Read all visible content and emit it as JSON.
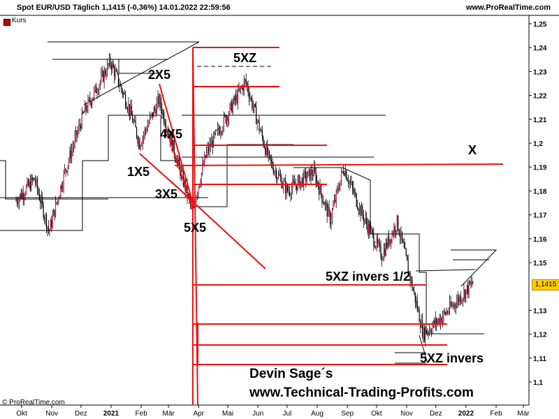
{
  "header": {
    "instrument": "Spot EUR/USD Täglich 1,1415 (-0,36%) 14.01.2022 22:59:56",
    "site": "www.ProRealTime.com"
  },
  "legend": {
    "label": "Kurs",
    "color": "#cc0000"
  },
  "price_tag": "1,1415",
  "credit": "© ProRealTime.com",
  "signature": {
    "line1": "Devin Sage´s",
    "line2": "www.Technical-Trading-Profits.com"
  },
  "chart_data": {
    "type": "candlestick-overlay",
    "title": "",
    "y_ticks": [
      "1,25",
      "1,24",
      "1,23",
      "1,22",
      "1,21",
      "1,2",
      "1,19",
      "1,18",
      "1,17",
      "1,16",
      "1,15",
      "1,13",
      "1,12",
      "1,11",
      "1,1"
    ],
    "y_tick_values": [
      1.25,
      1.24,
      1.23,
      1.22,
      1.21,
      1.2,
      1.19,
      1.18,
      1.17,
      1.16,
      1.15,
      1.13,
      1.12,
      1.11,
      1.1
    ],
    "x_ticks": [
      "Okt",
      "Nov",
      "Dez",
      "2021",
      "Feb",
      "Mär",
      "Apr",
      "Mai",
      "Jun",
      "Jul",
      "Aug",
      "Sep",
      "Okt",
      "Nov",
      "Dez",
      "2022",
      "Feb",
      "Mär"
    ],
    "ylim": [
      1.095,
      1.255
    ],
    "last_value": 1.1415,
    "price_path_approx": [
      [
        "2020-10-01",
        1.176
      ],
      [
        "2020-10-20",
        1.185
      ],
      [
        "2020-11-04",
        1.163
      ],
      [
        "2020-11-20",
        1.188
      ],
      [
        "2020-12-10",
        1.213
      ],
      [
        "2021-01-06",
        1.234
      ],
      [
        "2021-01-25",
        1.215
      ],
      [
        "2021-02-05",
        1.2
      ],
      [
        "2021-02-25",
        1.218
      ],
      [
        "2021-03-31",
        1.172
      ],
      [
        "2021-04-15",
        1.196
      ],
      [
        "2021-05-25",
        1.226
      ],
      [
        "2021-06-18",
        1.193
      ],
      [
        "2021-07-07",
        1.18
      ],
      [
        "2021-08-03",
        1.188
      ],
      [
        "2021-08-20",
        1.168
      ],
      [
        "2021-09-03",
        1.19
      ],
      [
        "2021-09-20",
        1.172
      ],
      [
        "2021-10-12",
        1.153
      ],
      [
        "2021-10-28",
        1.167
      ],
      [
        "2021-11-24",
        1.12
      ],
      [
        "2021-12-15",
        1.128
      ],
      [
        "2022-01-14",
        1.1415
      ]
    ],
    "annotations": [
      "5XZ",
      "2X5",
      "4X5",
      "1X5",
      "3X5",
      "5X5",
      "X",
      "5XZ invers 1/2",
      "5XZ invers"
    ],
    "ann_style": {
      "color": "#000000",
      "line_color": "#ff0000"
    }
  }
}
